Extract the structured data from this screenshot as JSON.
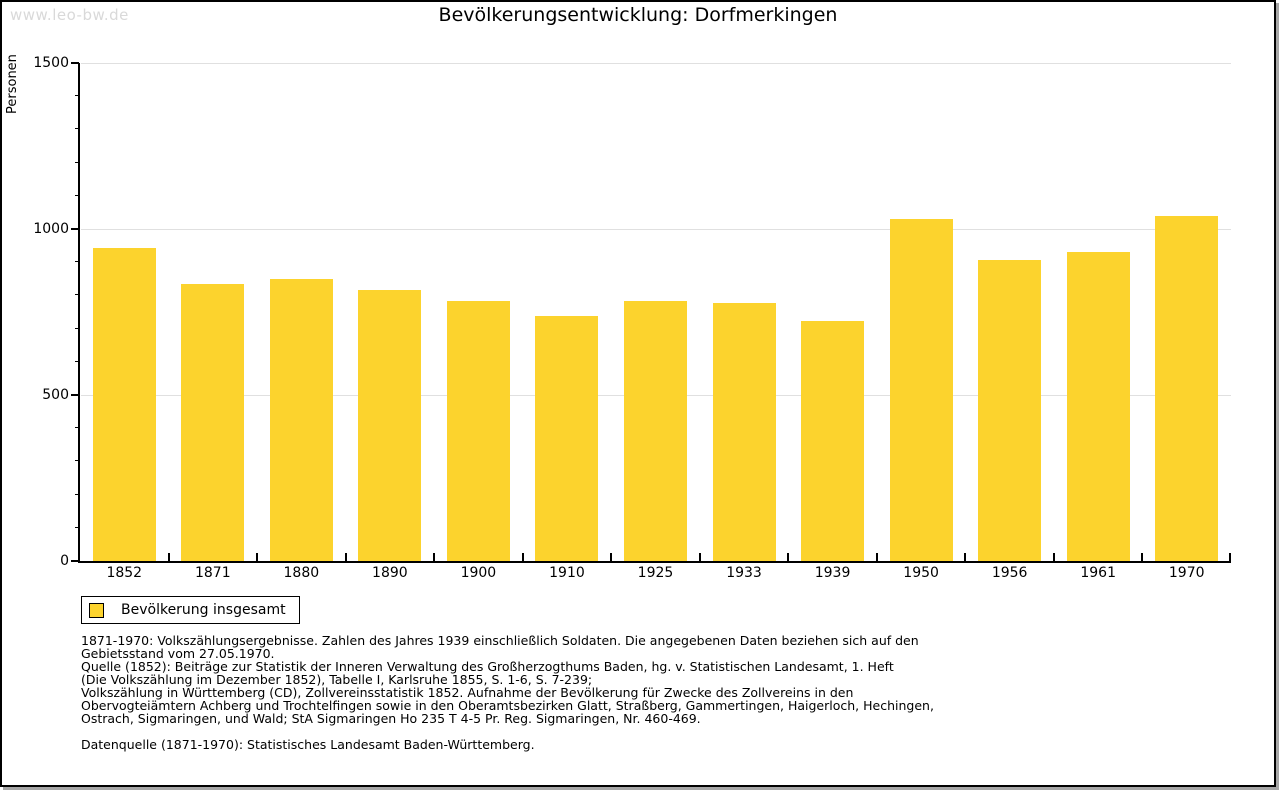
{
  "watermark": "www.leo-bw.de",
  "title": "Bevölkerungsentwicklung: Dorfmerkingen",
  "chart_data": {
    "type": "bar",
    "title": "Bevölkerungsentwicklung: Dorfmerkingen",
    "xlabel": "",
    "ylabel": "Personen",
    "categories": [
      "1852",
      "1871",
      "1880",
      "1890",
      "1900",
      "1910",
      "1925",
      "1933",
      "1939",
      "1950",
      "1956",
      "1961",
      "1970"
    ],
    "values": [
      942,
      834,
      849,
      817,
      784,
      739,
      783,
      777,
      722,
      1029,
      908,
      932,
      1040
    ],
    "series_name": "Bevölkerung insgesamt",
    "ylim": [
      0,
      1500
    ],
    "ytick_major": 500,
    "ytick_minor": 100,
    "grid": true,
    "legend_position": "bottom-left",
    "bar_color": "#fcd32d",
    "grid_color": "#e0e0e0"
  },
  "legend": {
    "label": "Bevölkerung insgesamt"
  },
  "footnotes": {
    "para1": [
      "1871-1970: Volkszählungsergebnisse. Zahlen des Jahres 1939 einschließlich Soldaten. Die angegebenen Daten beziehen sich auf den",
      "Gebietsstand vom 27.05.1970.",
      "Quelle (1852): Beiträge zur Statistik der Inneren Verwaltung des Großherzogthums Baden, hg. v. Statistischen Landesamt, 1. Heft",
      "(Die Volkszählung im Dezember 1852), Tabelle I, Karlsruhe 1855, S. 1-6, S. 7-239;",
      "Volkszählung in Württemberg (CD), Zollvereinsstatistik 1852. Aufnahme der Bevölkerung für Zwecke des Zollvereins in den",
      "Obervogteiämtern Achberg und Trochtelfingen sowie in den Oberamtsbezirken Glatt, Straßberg, Gammertingen, Haigerloch, Hechingen,",
      "Ostrach, Sigmaringen, und Wald; StA Sigmaringen Ho 235 T 4-5 Pr. Reg. Sigmaringen, Nr. 460-469."
    ],
    "para2": "Datenquelle (1871-1970): Statistisches Landesamt Baden-Württemberg."
  },
  "colors": {
    "bar": "#fcd32d",
    "grid": "#e0e0e0",
    "watermark": "#d9d9d9",
    "axis": "#000000",
    "shadow": "#a6a6a6"
  }
}
